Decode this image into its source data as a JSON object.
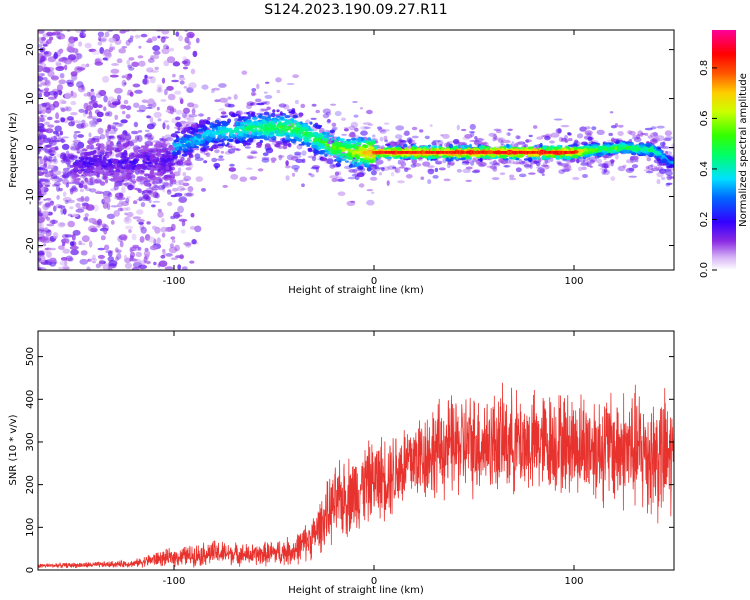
{
  "figure_title": "S124.2023.190.09.27.R11",
  "chart_data": [
    {
      "type": "heatmap",
      "xlabel": "Height of straight line (km)",
      "ylabel": "Frequency (Hz)",
      "xlim": [
        -168,
        150
      ],
      "ylim": [
        -25,
        24
      ],
      "xticks": [
        -100,
        0,
        100
      ],
      "yticks": [
        -20,
        -10,
        0,
        10,
        20
      ],
      "colorbar": {
        "label": "Normalized spectral amplitude",
        "range": [
          0,
          0.95
        ],
        "ticks": [
          0.0,
          0.2,
          0.4,
          0.6,
          0.8
        ],
        "tick_labels": [
          "0.0",
          "0.2",
          "0.4",
          "0.6",
          "0.8"
        ]
      },
      "ridge": {
        "description_x": [
          -100,
          -80,
          -60,
          -40,
          -30,
          -20,
          -10,
          0,
          50,
          100,
          110,
          125,
          140,
          148
        ],
        "frequency_hz": [
          0,
          3,
          4,
          4,
          2,
          0,
          -1,
          -1,
          -1,
          -1,
          -0.5,
          0,
          -0.5,
          -3
        ],
        "peak_amplitude": [
          0.35,
          0.4,
          0.5,
          0.55,
          0.5,
          0.6,
          0.65,
          0.85,
          0.9,
          0.9,
          0.6,
          0.55,
          0.5,
          0.35
        ]
      },
      "grid": false
    },
    {
      "type": "line",
      "xlabel": "Height of straight line (km)",
      "ylabel": "SNR (10 * v/v)",
      "xlim": [
        -168,
        150
      ],
      "ylim": [
        0,
        560
      ],
      "xticks": [
        -100,
        0,
        100
      ],
      "yticks": [
        0,
        100,
        200,
        300,
        400,
        500
      ],
      "color": "#e8322d",
      "series": [
        {
          "x": [
            -168,
            -140,
            -120,
            -110,
            -100,
            -90,
            -80,
            -70,
            -60,
            -50,
            -40,
            -30,
            -25,
            -20,
            -15,
            -10,
            -5,
            0,
            10,
            20,
            30,
            40,
            50,
            60,
            70,
            80,
            90,
            100,
            110,
            120,
            130,
            140,
            150
          ],
          "y_mean": [
            10,
            12,
            15,
            25,
            30,
            35,
            40,
            38,
            35,
            40,
            45,
            80,
            120,
            150,
            170,
            180,
            200,
            210,
            230,
            260,
            280,
            290,
            295,
            300,
            300,
            295,
            300,
            295,
            290,
            285,
            280,
            270,
            260
          ],
          "y_spread": [
            6,
            8,
            10,
            20,
            25,
            30,
            35,
            30,
            30,
            35,
            40,
            60,
            80,
            100,
            110,
            110,
            110,
            110,
            120,
            120,
            130,
            140,
            140,
            140,
            140,
            140,
            140,
            140,
            150,
            160,
            170,
            180,
            180
          ]
        }
      ],
      "grid": false
    }
  ]
}
